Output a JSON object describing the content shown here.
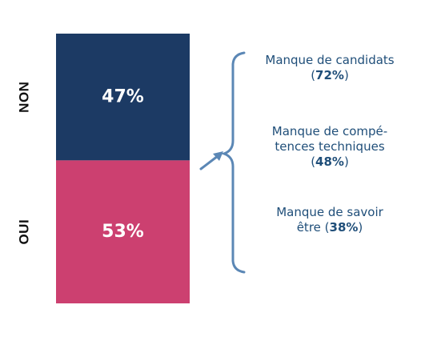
{
  "chart_data": {
    "type": "bar",
    "subtype": "100%-stacked-single-column",
    "categories": [
      "NON",
      "OUI"
    ],
    "values": [
      47,
      53
    ],
    "value_labels": [
      "47%",
      "53%"
    ],
    "colors": {
      "NON": "#1c3a64",
      "OUI": "#cc4070",
      "bracket": "#5b87b5",
      "text_accent": "#1f4e79"
    },
    "title": "",
    "xlabel": "",
    "ylabel": ""
  },
  "reasons": {
    "items": [
      {
        "lines": [
          "Manque de candidats"
        ],
        "pct": "72%"
      },
      {
        "lines": [
          "Manque de compé-",
          "tences techniques"
        ],
        "pct": "48%"
      },
      {
        "lines": [
          "Manque de savoir",
          "être"
        ],
        "pct": "38%"
      }
    ]
  },
  "icons": {
    "arrow": "arrow-up-right-icon",
    "bracket": "curly-brace-icon"
  }
}
